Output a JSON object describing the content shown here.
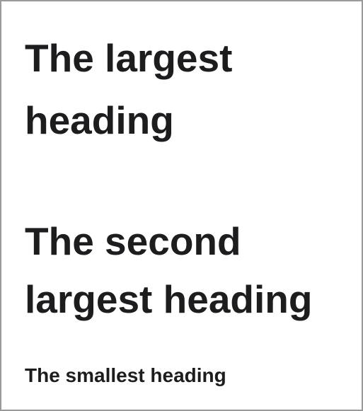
{
  "headings": {
    "largest_line1": "The largest",
    "largest_line2": "heading",
    "second_line1": "The second",
    "second_line2": "largest heading",
    "smallest": "The smallest heading"
  }
}
